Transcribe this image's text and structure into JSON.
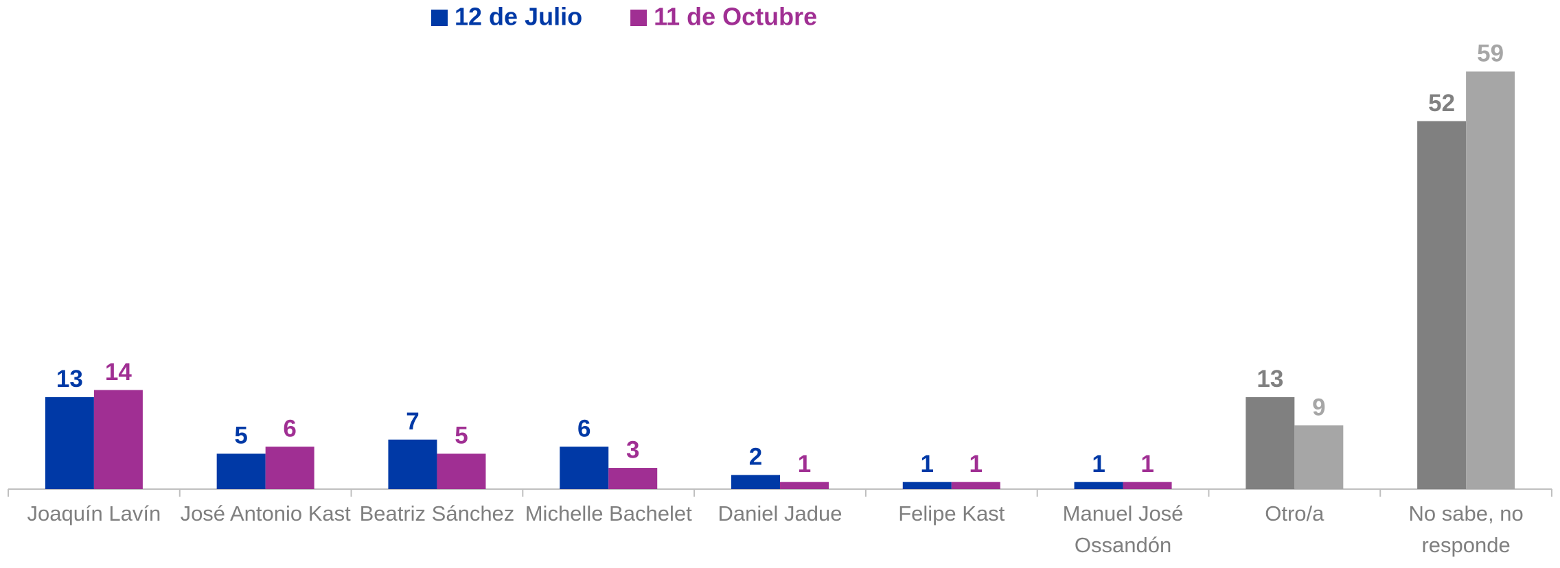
{
  "chart_data": {
    "type": "bar",
    "categories": [
      "Joaquín Lavín",
      "José Antonio Kast",
      "Beatriz Sánchez",
      "Michelle Bachelet",
      "Daniel Jadue",
      "Felipe Kast",
      "Manuel José Ossandón",
      "Otro/a",
      "No sabe, no responde"
    ],
    "series": [
      {
        "name": "12 de Julio",
        "color": "#0039A6",
        "values": [
          13,
          5,
          7,
          6,
          2,
          1,
          1,
          13,
          52
        ],
        "colors": [
          "#0039A6",
          "#0039A6",
          "#0039A6",
          "#0039A6",
          "#0039A6",
          "#0039A6",
          "#0039A6",
          "#808080",
          "#808080"
        ]
      },
      {
        "name": "11 de Octubre",
        "color": "#A02F93",
        "values": [
          14,
          6,
          5,
          3,
          1,
          1,
          1,
          9,
          59
        ],
        "colors": [
          "#A02F93",
          "#A02F93",
          "#A02F93",
          "#A02F93",
          "#A02F93",
          "#A02F93",
          "#A02F93",
          "#A6A6A6",
          "#A6A6A6"
        ]
      }
    ],
    "ylim": [
      0,
      60
    ],
    "legend": "top"
  }
}
